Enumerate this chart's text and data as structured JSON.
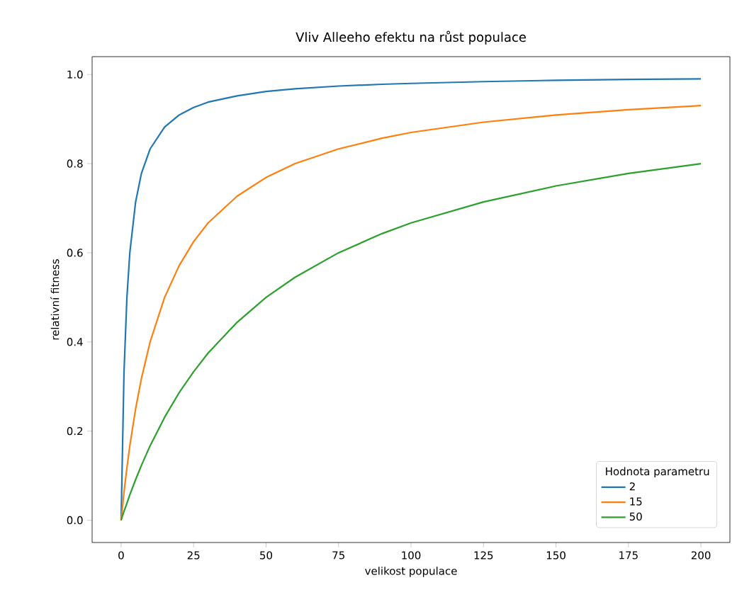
{
  "chart_data": {
    "type": "line",
    "title": "Vliv Alleeho efektu na růst populace",
    "xlabel": "velikost populace",
    "ylabel": "relativní fitness",
    "legend_title": "Hodnota parametru",
    "x": [
      0,
      1,
      2,
      3,
      5,
      7,
      10,
      15,
      20,
      25,
      30,
      40,
      50,
      60,
      75,
      90,
      100,
      125,
      150,
      175,
      200
    ],
    "series": [
      {
        "name": "2",
        "color": "#1f77b4",
        "values": [
          0,
          0.333,
          0.5,
          0.6,
          0.714,
          0.778,
          0.833,
          0.882,
          0.909,
          0.926,
          0.938,
          0.952,
          0.962,
          0.968,
          0.974,
          0.978,
          0.98,
          0.984,
          0.987,
          0.989,
          0.99
        ]
      },
      {
        "name": "15",
        "color": "#ff7f0e",
        "values": [
          0,
          0.063,
          0.118,
          0.167,
          0.25,
          0.318,
          0.4,
          0.5,
          0.571,
          0.625,
          0.667,
          0.727,
          0.769,
          0.8,
          0.833,
          0.857,
          0.87,
          0.893,
          0.909,
          0.921,
          0.93
        ]
      },
      {
        "name": "50",
        "color": "#2ca02c",
        "values": [
          0,
          0.02,
          0.038,
          0.057,
          0.091,
          0.123,
          0.167,
          0.231,
          0.286,
          0.333,
          0.375,
          0.444,
          0.5,
          0.545,
          0.6,
          0.643,
          0.667,
          0.714,
          0.75,
          0.778,
          0.8
        ]
      }
    ],
    "xlim": [
      -10,
      210
    ],
    "ylim": [
      -0.05,
      1.04
    ],
    "xticks": [
      0,
      25,
      50,
      75,
      100,
      125,
      150,
      175,
      200
    ],
    "yticks": [
      {
        "value": 0,
        "label": "0.0"
      },
      {
        "value": 0.2,
        "label": "0.2"
      },
      {
        "value": 0.4,
        "label": "0.4"
      },
      {
        "value": 0.6,
        "label": "0.6"
      },
      {
        "value": 0.8,
        "label": "0.8"
      },
      {
        "value": 1.0,
        "label": "1.0"
      }
    ],
    "legend": "bottom right",
    "grid": false,
    "marker": "none",
    "line_style": "solid"
  }
}
